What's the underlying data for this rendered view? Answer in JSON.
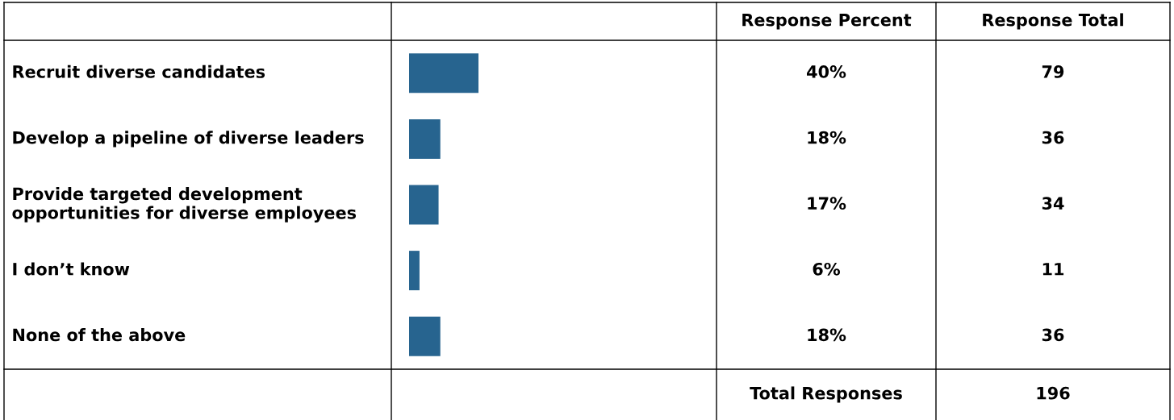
{
  "chart_data": {
    "type": "bar",
    "orientation": "horizontal",
    "categories": [
      "Recruit diverse candidates",
      "Develop a pipeline of diverse leaders",
      "Provide targeted development opportunities for diverse employees",
      "I don’t know",
      "None of the above"
    ],
    "values": [
      40,
      18,
      17,
      6,
      18
    ],
    "value_labels": [
      "40%",
      "18%",
      "17%",
      "6%",
      "18%"
    ],
    "color": "#27648f",
    "annotations": [
      "Response Percent",
      "Response Total",
      "79",
      "36",
      "34",
      "11",
      "36",
      "Total Responses",
      "196"
    ]
  }
}
